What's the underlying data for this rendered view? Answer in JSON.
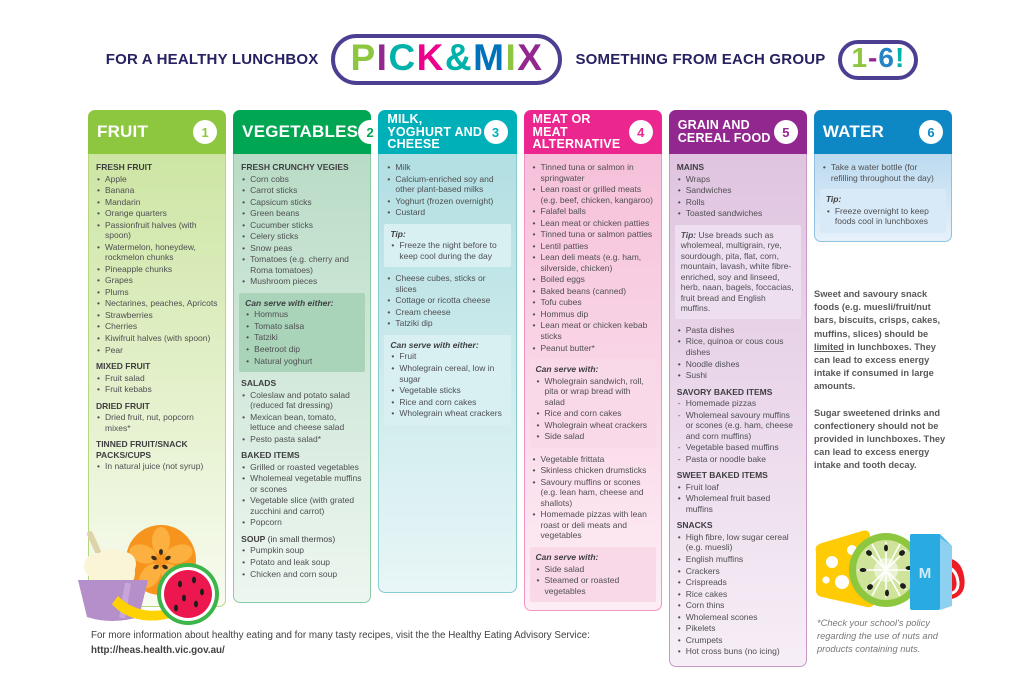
{
  "header": {
    "left_text": "FOR A HEALTHY LUNCHBOX",
    "right_text": "SOMETHING FROM EACH GROUP",
    "logo": {
      "letters": [
        {
          "ch": "P",
          "color": "#8dc63f"
        },
        {
          "ch": "I",
          "color": "#92278f"
        },
        {
          "ch": "C",
          "color": "#00b2a9"
        },
        {
          "ch": "K",
          "color": "#ec008c"
        },
        {
          "ch": "&",
          "color": "#00b2a9"
        },
        {
          "ch": "M",
          "color": "#0072bc"
        },
        {
          "ch": "I",
          "color": "#8dc63f"
        },
        {
          "ch": "X",
          "color": "#92278f"
        }
      ]
    },
    "range": {
      "chars": [
        {
          "ch": "1",
          "color": "#8dc63f"
        },
        {
          "ch": "-",
          "color": "#92278f"
        },
        {
          "ch": "6",
          "color": "#2484c6"
        },
        {
          "ch": "!",
          "color": "#00b2a9"
        }
      ]
    }
  },
  "columns": [
    {
      "number": "1",
      "title": "FRUIT",
      "header_color": "#8dc63f",
      "body_top": "#cde5a4",
      "body_bottom": "#f8fbef",
      "border": "#b5d77f",
      "box_bg": "#bcdc8e",
      "sections": [
        {
          "type": "list",
          "heading": "FRESH FRUIT",
          "items": [
            "Apple",
            "Banana",
            "Mandarin",
            "Orange quarters",
            "Passionfruit halves (with spoon)",
            "Watermelon, honeydew, rockmelon chunks",
            "Pineapple chunks",
            "Grapes",
            "Plums",
            "Nectarines, peaches, Apricots",
            "Strawberries",
            "Cherries",
            "Kiwifruit halves (with spoon)",
            "Pear"
          ]
        },
        {
          "type": "list",
          "heading": "MIXED FRUIT",
          "items": [
            "Fruit salad",
            "Fruit kebabs"
          ]
        },
        {
          "type": "list",
          "heading": "DRIED FRUIT",
          "items": [
            "Dried fruit, nut, popcorn mixes*"
          ]
        },
        {
          "type": "list",
          "heading": "TINNED FRUIT/SNACK PACKS/CUPS",
          "items": [
            "In natural juice (not syrup)"
          ]
        }
      ]
    },
    {
      "number": "2",
      "title": "VEGETABLES",
      "header_color": "#00a651",
      "body_top": "#b9dcc6",
      "body_bottom": "#edf6f0",
      "border": "#8cc9a5",
      "box_bg": "#a9d4b9",
      "sections": [
        {
          "type": "list",
          "heading": "FRESH CRUNCHY VEGIES",
          "items": [
            "Corn cobs",
            "Carrot sticks",
            "Capsicum sticks",
            "Green beans",
            "Cucumber sticks",
            "Celery sticks",
            "Snow peas",
            "Tomatoes (e.g. cherry and Roma tomatoes)",
            "Mushroom pieces"
          ]
        },
        {
          "type": "box",
          "heading": "Can serve with either:",
          "items": [
            "Hommus",
            "Tomato salsa",
            "Tatziki",
            "Beetroot dip",
            "Natural yoghurt"
          ]
        },
        {
          "type": "list",
          "heading": "SALADS",
          "items": [
            "Coleslaw and potato salad (reduced fat dressing)",
            "Mexican bean, tomato, lettuce and cheese salad",
            "Pesto pasta salad*"
          ]
        },
        {
          "type": "list",
          "heading": "BAKED ITEMS",
          "items": [
            "Grilled or roasted vegetables",
            "Wholemeal vegetable muffins or scones",
            "Vegetable slice (with grated zucchini and carrot)",
            "Popcorn"
          ]
        },
        {
          "type": "list",
          "heading": "SOUP",
          "heading_suffix": "(in small thermos)",
          "items": [
            "Pumpkin soup",
            "Potato and leak soup",
            "Chicken and corn soup"
          ]
        }
      ]
    },
    {
      "number": "3",
      "title": "MILK, YOGHURT AND CHEESE",
      "header_color": "#00b0b9",
      "body_top": "#b2dfe2",
      "body_bottom": "#e8f6f7",
      "border": "#86ccd1",
      "box_bg": "#d8f0f2",
      "sections": [
        {
          "type": "list",
          "items": [
            "Milk",
            "Calcium-enriched soy and other plant-based milks",
            "Yoghurt (frozen overnight)",
            "Custard"
          ]
        },
        {
          "type": "box",
          "heading": "Tip:",
          "items": [
            "Freeze the night before to keep cool during the day"
          ]
        },
        {
          "type": "list",
          "items": [
            "Cheese cubes, sticks or slices",
            "Cottage or ricotta cheese",
            "Cream cheese",
            "Tatziki dip"
          ]
        },
        {
          "type": "box",
          "heading": "Can serve with either:",
          "items": [
            "Fruit",
            "Wholegrain cereal, low in sugar",
            "Vegetable sticks",
            "Rice and corn cakes",
            "Wholegrain wheat crackers"
          ]
        }
      ]
    },
    {
      "number": "4",
      "title": "MEAT OR MEAT ALTERNATIVE",
      "header_color": "#ec268f",
      "body_top": "#f6c0da",
      "body_bottom": "#fdeef5",
      "border": "#f096c4",
      "box_bg": "#f9d8e8",
      "sections": [
        {
          "type": "list",
          "items": [
            "Tinned tuna or salmon in springwater",
            "Lean roast or grilled meats (e.g. beef, chicken, kangaroo)",
            "Falafel balls",
            "Lean meat or chicken patties",
            "Tinned tuna or salmon patties",
            "Lentil patties",
            "Lean deli meats (e.g. ham, silverside, chicken)",
            "Boiled eggs",
            "Baked beans (canned)",
            "Tofu cubes",
            "Hommus dip",
            "Lean meat or chicken kebab sticks",
            "Peanut butter*"
          ]
        },
        {
          "type": "box",
          "heading": "Can serve with:",
          "items": [
            "Wholegrain sandwich, roll, pita or wrap bread with salad",
            "Rice and corn cakes",
            "Wholegrain wheat crackers",
            "Side salad"
          ]
        },
        {
          "type": "list",
          "items": [
            "Vegetable frittata",
            "Skinless chicken drumsticks",
            "Savoury muffins or scones (e.g. lean ham, cheese and shallots)",
            "Homemade pizzas with lean roast or deli meats and vegetables"
          ]
        },
        {
          "type": "box",
          "heading": "Can serve with:",
          "items": [
            "Side salad",
            "Steamed or roasted vegetables"
          ]
        }
      ]
    },
    {
      "number": "5",
      "title": "GRAIN AND CEREAL FOOD",
      "header_color": "#92278f",
      "body_top": "#e0c4e0",
      "body_bottom": "#f6eef6",
      "border": "#c899c6",
      "box_bg": "#eedff0",
      "sections": [
        {
          "type": "list",
          "heading": "MAINS",
          "items": [
            "Wraps",
            "Sandwiches",
            "Rolls",
            "Toasted sandwiches"
          ]
        },
        {
          "type": "boxpara",
          "lead": "Tip:",
          "text": "Use breads such as wholemeal, multigrain, rye, sourdough, pita, flat, corn, mountain, lavash, white fibre-enriched, soy and linseed, herb, naan, bagels, foccacias, fruit bread and English muffins."
        },
        {
          "type": "list",
          "items": [
            "Pasta dishes",
            "Rice, quinoa or cous cous dishes",
            "Noodle dishes",
            "Sushi"
          ]
        },
        {
          "type": "list",
          "heading": "SAVORY BAKED ITEMS",
          "bullet": "-",
          "items": [
            "Homemade pizzas",
            "Wholemeal savoury muffins or scones (e.g. ham, cheese and corn muffins)",
            "Vegetable based muffins",
            "Pasta or noodle bake"
          ]
        },
        {
          "type": "list",
          "heading": "SWEET BAKED ITEMS",
          "items": [
            "Fruit loaf",
            "Wholemeal fruit based muffins"
          ]
        },
        {
          "type": "list",
          "heading": "SNACKS",
          "items": [
            "High fibre, low sugar cereal (e.g. muesli)",
            "English muffins",
            "Crackers",
            "Crispreads",
            "Rice cakes",
            "Corn thins",
            "Wholemeal scones",
            "Pikelets",
            "Crumpets",
            "Hot cross buns (no icing)"
          ]
        }
      ]
    },
    {
      "number": "6",
      "title": "WATER",
      "header_color": "#0e87c5",
      "body_top": "#bcdaef",
      "body_bottom": "#e6f1fa",
      "border": "#8fc1e3",
      "box_bg": "#d8eaf7",
      "sections": [
        {
          "type": "list",
          "items": [
            "Take a water bottle (for refilling throughout the day)"
          ]
        },
        {
          "type": "box",
          "heading": "Tip:",
          "items": [
            "Freeze overnight to keep foods cool in lunchboxes"
          ]
        }
      ]
    }
  ],
  "side_notes": {
    "note1": {
      "pre": "Sweet and savoury snack foods (e.g. muesli/fruit/nut bars, biscuits, crisps, cakes, muffins, slices) should be ",
      "underlined": "limited",
      "post": " in lunchboxes. They can lead to excess energy intake if consumed in large amounts."
    },
    "note2": "Sugar sweetened drinks and confectionery should not be provided in lunchboxes. They can lead to excess energy intake and tooth decay."
  },
  "footer": {
    "info_text": "For more information about healthy eating and for many tasty recipes, visit the the Healthy Eating Advisory Service:",
    "url": "http://heas.health.vic.gov.au/"
  },
  "nut_note": "*Check your school's policy regarding the use of nuts and products containing nuts.",
  "illustrations": {
    "left": [
      "yoghurt-cup",
      "orange",
      "banana",
      "watermelon"
    ],
    "right": [
      "cheese-wedge",
      "kiwi-slice",
      "milk-carton",
      "meat-cut"
    ]
  }
}
